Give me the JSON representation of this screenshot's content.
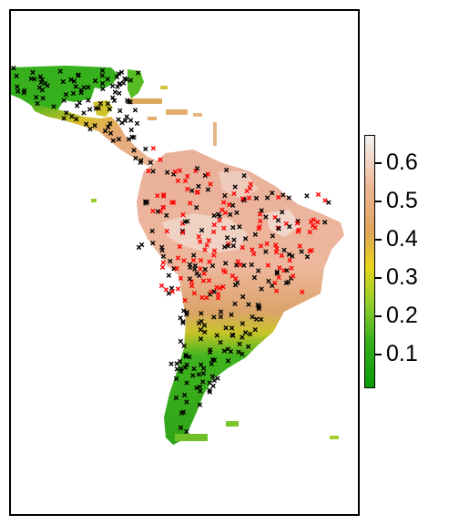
{
  "legend": {
    "ticks": [
      "0.6",
      "0.5",
      "0.4",
      "0.3",
      "0.2",
      "0.1"
    ],
    "colors": [
      "#0a9a0a",
      "#8fce2c",
      "#e6d51a",
      "#e0a45b",
      "#eeb795",
      "#f2f2f2"
    ]
  },
  "markers": {
    "symbol": "x",
    "colors": [
      "#000000",
      "#ff0000"
    ]
  }
}
